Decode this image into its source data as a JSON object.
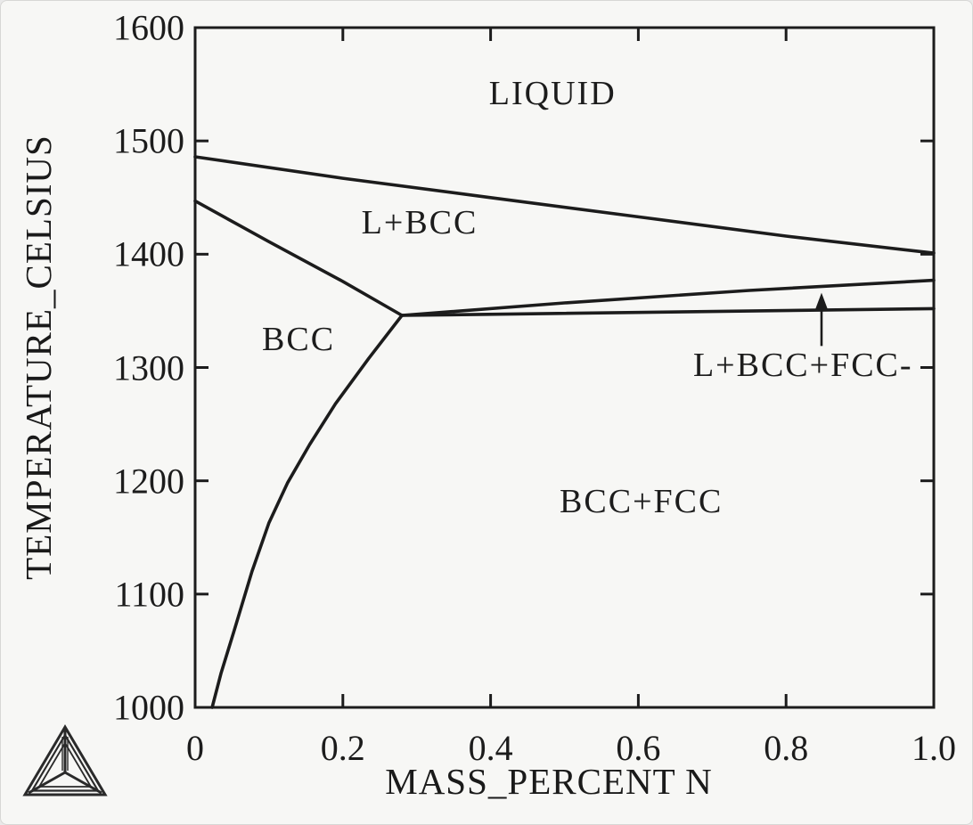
{
  "figure": {
    "background_color": "#f7f7f5",
    "line_color": "#1c1c1c"
  },
  "chart_data": {
    "type": "line",
    "title": "",
    "xlabel": "MASS_PERCENT N",
    "ylabel": "TEMPERATURE_CELSIUS",
    "xlim": [
      0,
      1.0
    ],
    "ylim": [
      1000,
      1600
    ],
    "grid": false,
    "legend": "none",
    "xticks": [
      0,
      0.2,
      0.4,
      0.6,
      0.8,
      1.0
    ],
    "xtick_labels": [
      "0",
      "0.2",
      "0.4",
      "0.6",
      "0.8",
      "1.0"
    ],
    "yticks": [
      1000,
      1100,
      1200,
      1300,
      1400,
      1500,
      1600
    ],
    "ytick_labels": [
      "1000",
      "1100",
      "1200",
      "1300",
      "1400",
      "1500",
      "1600"
    ],
    "triple_point": {
      "x": 0.28,
      "T": 1346
    },
    "series": [
      {
        "name": "liquidus-liquid-over-l-bcc",
        "points": [
          [
            0,
            1486
          ],
          [
            0.2,
            1467
          ],
          [
            0.4,
            1450
          ],
          [
            0.6,
            1433
          ],
          [
            0.8,
            1416
          ],
          [
            1.0,
            1401
          ]
        ]
      },
      {
        "name": "bcc-solidus-left",
        "points": [
          [
            0,
            1447
          ],
          [
            0.1,
            1411
          ],
          [
            0.2,
            1376
          ],
          [
            0.28,
            1346
          ]
        ]
      },
      {
        "name": "upper-boundary-l-bcc-over-l-bcc-fcc",
        "points": [
          [
            0.28,
            1346
          ],
          [
            0.5,
            1357
          ],
          [
            0.75,
            1368
          ],
          [
            1.0,
            1377
          ]
        ]
      },
      {
        "name": "lower-boundary-l-bcc-fcc-over-bcc-fcc",
        "points": [
          [
            0.28,
            1346
          ],
          [
            1.0,
            1352
          ]
        ]
      },
      {
        "name": "bcc-solvus-bcc-over-bcc-fcc",
        "points": [
          [
            0.28,
            1346
          ],
          [
            0.235,
            1308
          ],
          [
            0.19,
            1268
          ],
          [
            0.155,
            1232
          ],
          [
            0.125,
            1198
          ],
          [
            0.1,
            1163
          ],
          [
            0.077,
            1120
          ],
          [
            0.053,
            1068
          ],
          [
            0.035,
            1030
          ],
          [
            0.023,
            1000
          ]
        ]
      }
    ],
    "annotations": [
      {
        "id": "liquid",
        "text": "LIQUID",
        "x": 0.484,
        "T": 1542
      },
      {
        "id": "l-bcc",
        "text": "L+BCC",
        "x": 0.304,
        "T": 1428
      },
      {
        "id": "bcc",
        "text": "BCC",
        "x": 0.14,
        "T": 1325
      },
      {
        "id": "bcc-fcc",
        "text": "BCC+FCC",
        "x": 0.604,
        "T": 1182
      },
      {
        "id": "l-bcc-fcc",
        "text": "L+BCC+FCC-",
        "x": 0.823,
        "T": 1302
      }
    ],
    "arrow": {
      "x": 0.848,
      "T_from": 1319,
      "T_to": 1366
    }
  },
  "logo": {
    "name": "Thermo-Calc triangle logo"
  }
}
